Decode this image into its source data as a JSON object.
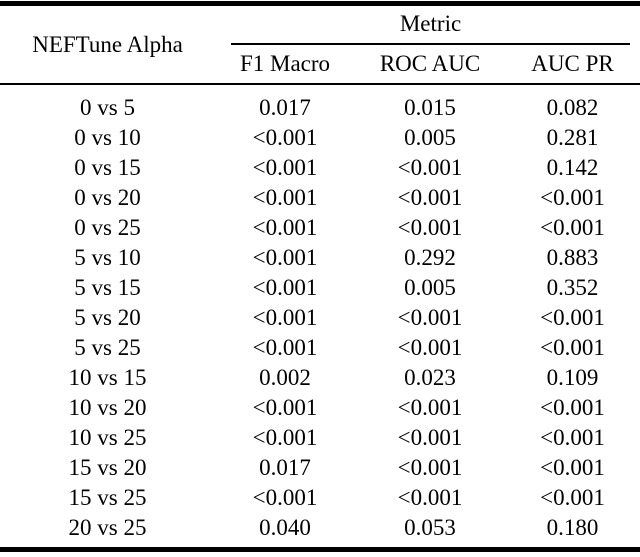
{
  "page": {
    "background_color": "#ffffff",
    "text_color": "#000000",
    "rule_color": "#000000"
  },
  "table": {
    "col1_header": "NEFTune Alpha",
    "group_header": "Metric",
    "sub_headers": [
      "F1 Macro",
      "ROC AUC",
      "AUC PR"
    ],
    "rows": [
      {
        "label": "0 vs 5",
        "f1_macro": "0.017",
        "roc_auc": "0.015",
        "auc_pr": "0.082"
      },
      {
        "label": "0 vs 10",
        "f1_macro": "<0.001",
        "roc_auc": "0.005",
        "auc_pr": "0.281"
      },
      {
        "label": "0 vs 15",
        "f1_macro": "<0.001",
        "roc_auc": "<0.001",
        "auc_pr": "0.142"
      },
      {
        "label": "0 vs 20",
        "f1_macro": "<0.001",
        "roc_auc": "<0.001",
        "auc_pr": "<0.001"
      },
      {
        "label": "0 vs 25",
        "f1_macro": "<0.001",
        "roc_auc": "<0.001",
        "auc_pr": "<0.001"
      },
      {
        "label": "5 vs 10",
        "f1_macro": "<0.001",
        "roc_auc": "0.292",
        "auc_pr": "0.883"
      },
      {
        "label": "5 vs 15",
        "f1_macro": "<0.001",
        "roc_auc": "0.005",
        "auc_pr": "0.352"
      },
      {
        "label": "5 vs 20",
        "f1_macro": "<0.001",
        "roc_auc": "<0.001",
        "auc_pr": "<0.001"
      },
      {
        "label": "5 vs 25",
        "f1_macro": "<0.001",
        "roc_auc": "<0.001",
        "auc_pr": "<0.001"
      },
      {
        "label": "10 vs 15",
        "f1_macro": "0.002",
        "roc_auc": "0.023",
        "auc_pr": "0.109"
      },
      {
        "label": "10 vs 20",
        "f1_macro": "<0.001",
        "roc_auc": "<0.001",
        "auc_pr": "<0.001"
      },
      {
        "label": "10 vs 25",
        "f1_macro": "<0.001",
        "roc_auc": "<0.001",
        "auc_pr": "<0.001"
      },
      {
        "label": "15 vs 20",
        "f1_macro": "0.017",
        "roc_auc": "<0.001",
        "auc_pr": "<0.001"
      },
      {
        "label": "15 vs 25",
        "f1_macro": "<0.001",
        "roc_auc": "<0.001",
        "auc_pr": "<0.001"
      },
      {
        "label": "20 vs 25",
        "f1_macro": "0.040",
        "roc_auc": "0.053",
        "auc_pr": "0.180"
      }
    ]
  }
}
